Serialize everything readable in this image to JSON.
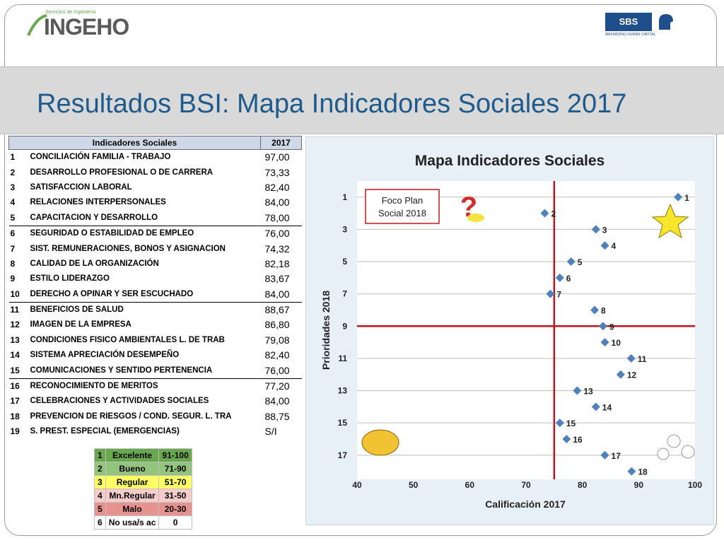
{
  "header": {
    "logo_left_small": "Servicios de Ingeniería",
    "logo_left_big": "INGEHO",
    "logo_right_main": "SBS",
    "logo_right_tagline": "MAXIMIZING HUMAN CAPITAL",
    "title": "Resultados BSI: Mapa Indicadores Sociales 2017"
  },
  "table": {
    "col_indicator": "Indicadores Sociales",
    "col_year": "2017",
    "rows": [
      {
        "n": "1",
        "name": "CONCILIACIÓN FAMILIA - TRABAJO",
        "value": "97,00"
      },
      {
        "n": "2",
        "name": "DESARROLLO PROFESIONAL O DE CARRERA",
        "value": "73,33"
      },
      {
        "n": "3",
        "name": "SATISFACCION  LABORAL",
        "value": "82,40"
      },
      {
        "n": "4",
        "name": "RELACIONES  INTERPERSONALES",
        "value": "84,00"
      },
      {
        "n": "5",
        "name": "CAPACITACION Y DESARROLLO",
        "value": "78,00"
      },
      {
        "n": "6",
        "name": "SEGURIDAD O ESTABILIDAD  DE EMPLEO",
        "value": "76,00"
      },
      {
        "n": "7",
        "name": "SIST. REMUNERACIONES, BONOS Y ASIGNACION",
        "value": "74,32"
      },
      {
        "n": "8",
        "name": "CALIDAD  DE  LA  ORGANIZACIÓN",
        "value": "82,18"
      },
      {
        "n": "9",
        "name": "ESTILO  LIDERAZGO",
        "value": "83,67"
      },
      {
        "n": "10",
        "name": "DERECHO A  OPINAR  Y  SER ESCUCHADO",
        "value": "84,00"
      },
      {
        "n": "11",
        "name": "BENEFICIOS  DE  SALUD",
        "value": "88,67"
      },
      {
        "n": "12",
        "name": "IMAGEN  DE  LA  EMPRESA",
        "value": "86,80"
      },
      {
        "n": "13",
        "name": "CONDICIONES  FISICO AMBIENTALES L. DE TRAB",
        "value": "79,08"
      },
      {
        "n": "14",
        "name": "SISTEMA APRECIACIÓN DESEMPEÑO",
        "value": "82,40"
      },
      {
        "n": "15",
        "name": "COMUNICACIONES Y SENTIDO PERTENENCIA",
        "value": "76,00"
      },
      {
        "n": "16",
        "name": "RECONOCIMIENTO DE MERITOS",
        "value": "77,20"
      },
      {
        "n": "17",
        "name": "CELEBRACIONES  Y  ACTIVIDADES  SOCIALES",
        "value": "84,00"
      },
      {
        "n": "18",
        "name": "PREVENCION DE RIESGOS / COND. SEGUR.  L. TRA",
        "value": "88,75"
      },
      {
        "n": "19",
        "name": "S. PREST. ESPECIAL (EMERGENCIAS)",
        "value": "S/I"
      }
    ]
  },
  "legend": [
    {
      "n": "1",
      "label": "Excelente",
      "range": "91-100",
      "color": "#6aa84f"
    },
    {
      "n": "2",
      "label": "Bueno",
      "range": "71-90",
      "color": "#93c47d"
    },
    {
      "n": "3",
      "label": "Regular",
      "range": "51-70",
      "color": "#ffff66"
    },
    {
      "n": "4",
      "label": "Mn.Regular",
      "range": "31-50",
      "color": "#f4cccc"
    },
    {
      "n": "5",
      "label": "Malo",
      "range": "20-30",
      "color": "#e6938f"
    },
    {
      "n": "6",
      "label": "No usa/s ac",
      "range": "0",
      "color": "#ffffff"
    }
  ],
  "chart_data": {
    "type": "scatter",
    "title": "Mapa Indicadores Sociales",
    "xlabel": "Calificación  2017",
    "ylabel": "Prioridades  2018",
    "xlim": [
      40,
      100
    ],
    "ylim": [
      18.5,
      0
    ],
    "x_ticks": [
      "40",
      "50",
      "60",
      "70",
      "80",
      "90",
      "100"
    ],
    "y_ticks": [
      "1",
      "3",
      "5",
      "7",
      "9",
      "11",
      "13",
      "15",
      "17"
    ],
    "callout": "Foco Plan Social 2018",
    "ref_x": 75,
    "ref_y": 9,
    "marker_color": "#4f81bd",
    "ref_line_color": "#c0161b",
    "points": [
      {
        "x": 97.0,
        "y": 1,
        "label": "1"
      },
      {
        "x": 73.33,
        "y": 2,
        "label": "2"
      },
      {
        "x": 82.4,
        "y": 3,
        "label": "3"
      },
      {
        "x": 84.0,
        "y": 4,
        "label": "4"
      },
      {
        "x": 78.0,
        "y": 5,
        "label": "5"
      },
      {
        "x": 76.0,
        "y": 6,
        "label": "6"
      },
      {
        "x": 74.32,
        "y": 7,
        "label": "7"
      },
      {
        "x": 82.18,
        "y": 8,
        "label": "8"
      },
      {
        "x": 83.67,
        "y": 9,
        "label": "9"
      },
      {
        "x": 84.0,
        "y": 10,
        "label": "10"
      },
      {
        "x": 88.67,
        "y": 11,
        "label": "11"
      },
      {
        "x": 86.8,
        "y": 12,
        "label": "12"
      },
      {
        "x": 79.08,
        "y": 13,
        "label": "13"
      },
      {
        "x": 82.4,
        "y": 14,
        "label": "14"
      },
      {
        "x": 76.0,
        "y": 15,
        "label": "15"
      },
      {
        "x": 77.2,
        "y": 16,
        "label": "16"
      },
      {
        "x": 84.0,
        "y": 17,
        "label": "17"
      },
      {
        "x": 88.75,
        "y": 18,
        "label": "18"
      }
    ]
  }
}
